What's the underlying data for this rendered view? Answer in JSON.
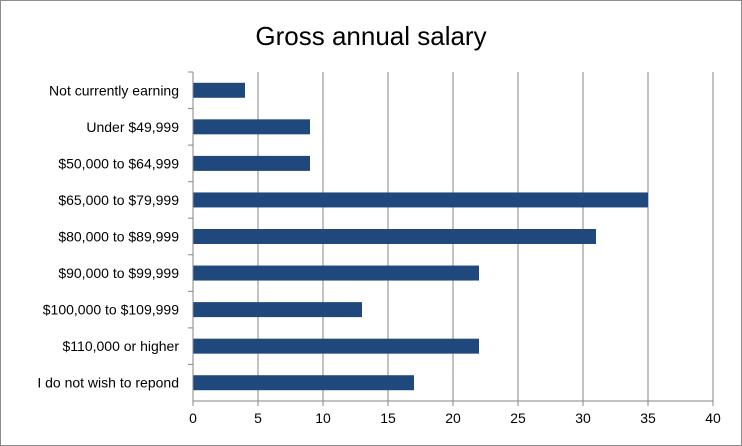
{
  "chart_data": {
    "type": "bar",
    "orientation": "horizontal",
    "title": "Gross annual salary",
    "categories": [
      "Not currently earning",
      "Under $49,999",
      "$50,000 to $64,999",
      "$65,000 to $79,999",
      "$80,000 to $89,999",
      "$90,000 to $99,999",
      "$100,000 to $109,999",
      "$110,000 or higher",
      "I do not wish to repond"
    ],
    "values": [
      4,
      9,
      9,
      35,
      31,
      22,
      13,
      22,
      17
    ],
    "xlim": [
      0,
      40
    ],
    "xticks": [
      "0",
      "5",
      "10",
      "15",
      "20",
      "25",
      "30",
      "35",
      "40"
    ],
    "grid": "vertical",
    "legend": "none",
    "bar_color": "#1f497d"
  }
}
